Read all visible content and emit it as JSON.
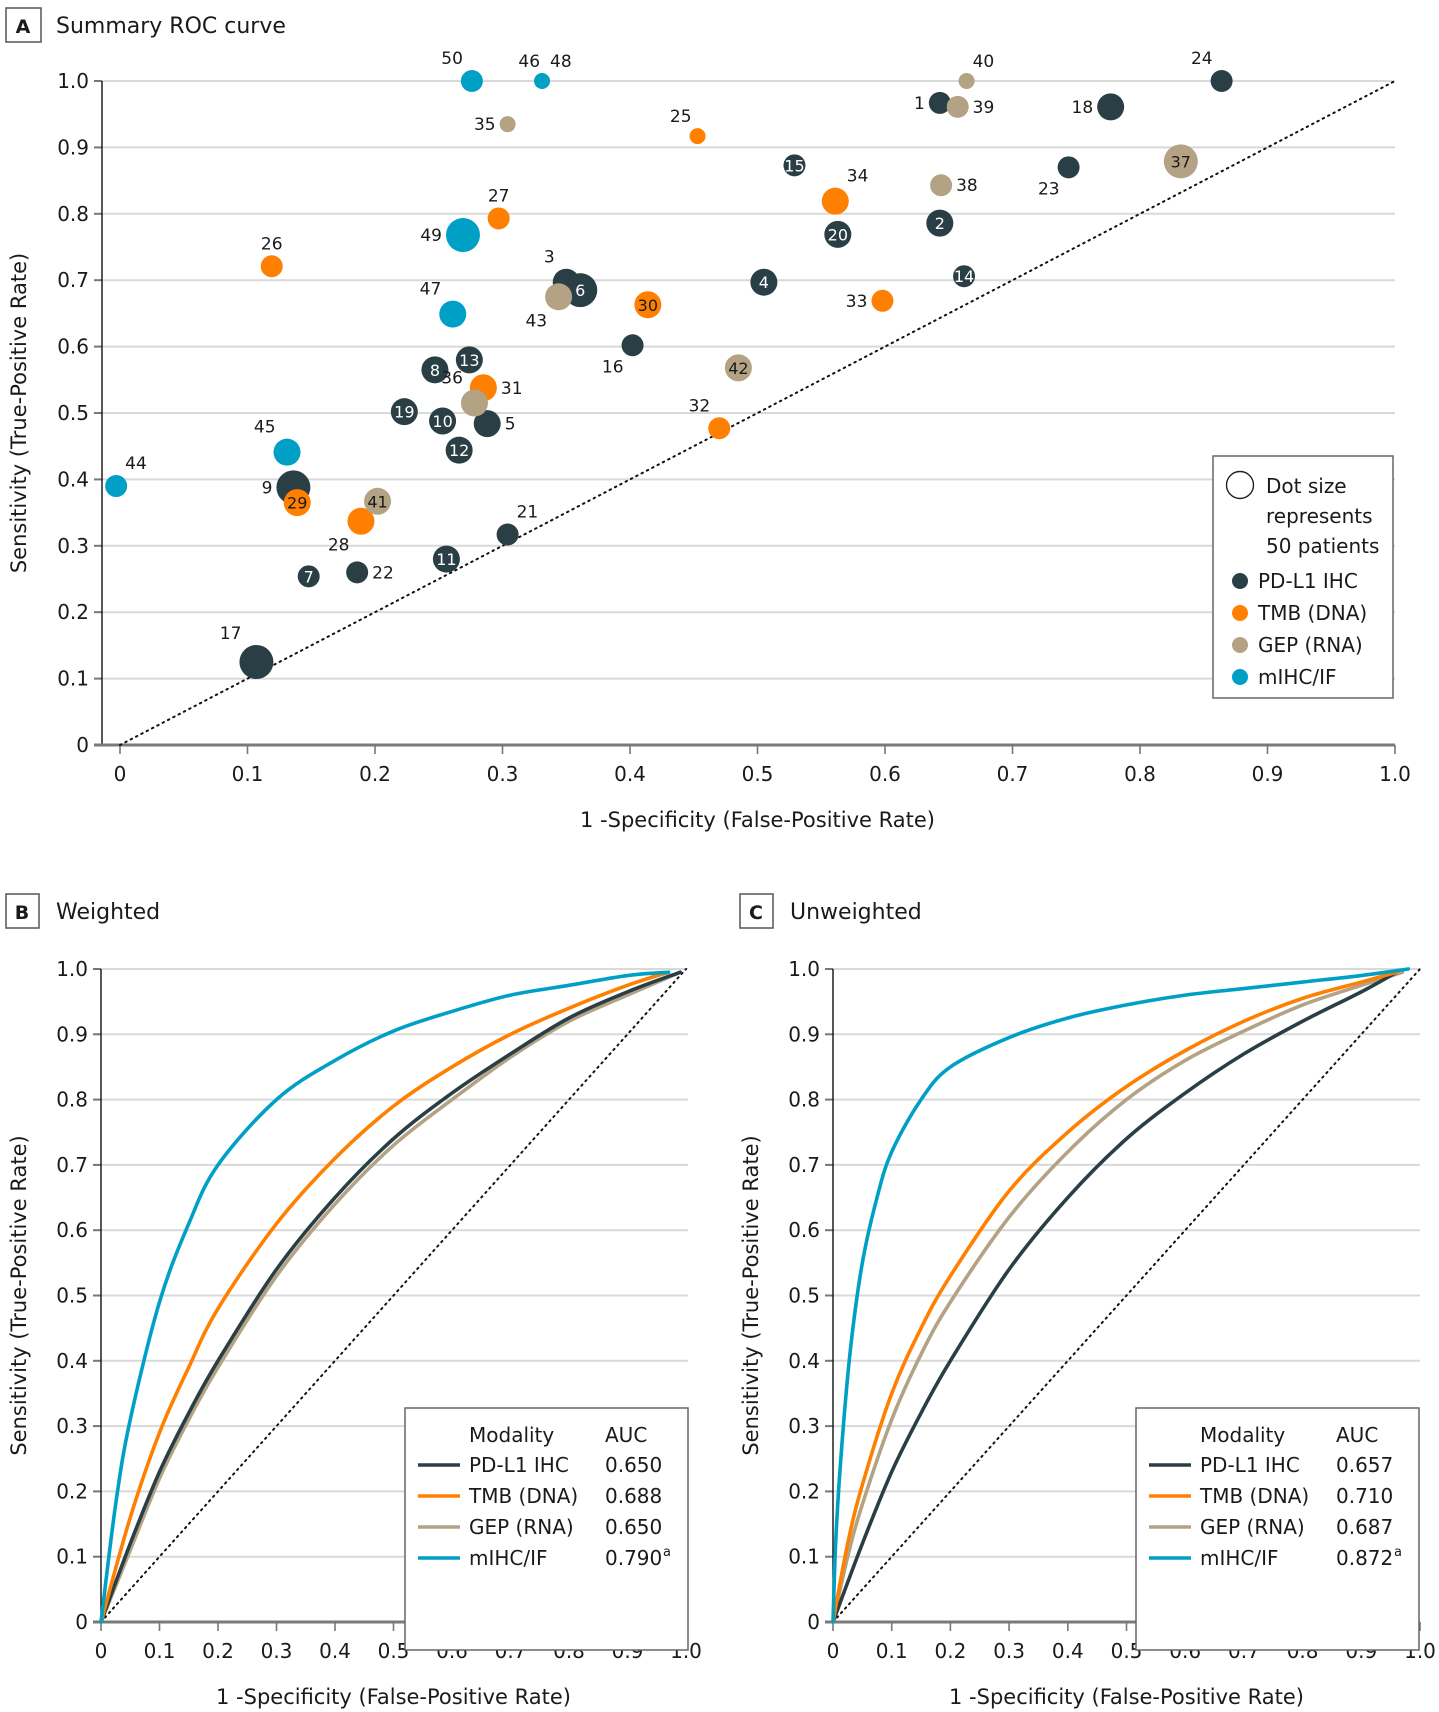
{
  "colors": {
    "PD-L1 IHC": "#2a3f45",
    "TMB (DNA)": "#ff8000",
    "GEP (RNA)": "#b3a283",
    "mIHC/IF": "#00a0c6",
    "grid": "#d9d9d9",
    "diagonal": "#111111"
  },
  "chart_data": [
    {
      "panel": "A",
      "type": "scatter",
      "title": "Summary ROC curve",
      "xlabel": "1 -Specificity (False-Positive Rate)",
      "ylabel": "Sensitivity (True-Positive Rate)",
      "xlim": [
        0,
        1.0
      ],
      "ylim": [
        0,
        1.0
      ],
      "xticks": [
        "0",
        "0.1",
        "0.2",
        "0.3",
        "0.4",
        "0.5",
        "0.6",
        "0.7",
        "0.8",
        "0.9",
        "1.0"
      ],
      "yticks": [
        "0",
        "0.1",
        "0.2",
        "0.3",
        "0.4",
        "0.5",
        "0.6",
        "0.7",
        "0.8",
        "0.9",
        "1.0"
      ],
      "grid": "horizontal",
      "reference_line": "diagonal (chance)",
      "legend": {
        "placement": "bottom-right",
        "size_note": [
          "Dot size",
          "represents",
          "50 patients"
        ],
        "entries": [
          "PD-L1 IHC",
          "TMB (DNA)",
          "GEP (RNA)",
          "mIHC/IF"
        ]
      },
      "points": [
        {
          "id": "1",
          "modality": "PD-L1 IHC",
          "x": 0.643,
          "y": 0.967,
          "size": "m",
          "label_pos": "left"
        },
        {
          "id": "2",
          "modality": "PD-L1 IHC",
          "x": 0.643,
          "y": 0.786,
          "size": "l",
          "label_pos": "in"
        },
        {
          "id": "3",
          "modality": "PD-L1 IHC",
          "x": 0.35,
          "y": 0.697,
          "size": "l",
          "label_pos": "top-left"
        },
        {
          "id": "4",
          "modality": "PD-L1 IHC",
          "x": 0.505,
          "y": 0.697,
          "size": "l",
          "label_pos": "in"
        },
        {
          "id": "5",
          "modality": "PD-L1 IHC",
          "x": 0.288,
          "y": 0.484,
          "size": "l",
          "label_pos": "right"
        },
        {
          "id": "6",
          "modality": "PD-L1 IHC",
          "x": 0.361,
          "y": 0.685,
          "size": "xl",
          "label_pos": "in"
        },
        {
          "id": "7",
          "modality": "PD-L1 IHC",
          "x": 0.148,
          "y": 0.254,
          "size": "m",
          "label_pos": "in"
        },
        {
          "id": "8",
          "modality": "PD-L1 IHC",
          "x": 0.247,
          "y": 0.565,
          "size": "l",
          "label_pos": "in"
        },
        {
          "id": "9",
          "modality": "PD-L1 IHC",
          "x": 0.136,
          "y": 0.388,
          "size": "xl",
          "label_pos": "left"
        },
        {
          "id": "10",
          "modality": "PD-L1 IHC",
          "x": 0.253,
          "y": 0.488,
          "size": "l",
          "label_pos": "in"
        },
        {
          "id": "11",
          "modality": "PD-L1 IHC",
          "x": 0.256,
          "y": 0.28,
          "size": "l",
          "label_pos": "in"
        },
        {
          "id": "12",
          "modality": "PD-L1 IHC",
          "x": 0.266,
          "y": 0.444,
          "size": "l",
          "label_pos": "in"
        },
        {
          "id": "13",
          "modality": "PD-L1 IHC",
          "x": 0.274,
          "y": 0.58,
          "size": "l",
          "label_pos": "in"
        },
        {
          "id": "14",
          "modality": "PD-L1 IHC",
          "x": 0.662,
          "y": 0.706,
          "size": "m",
          "label_pos": "in"
        },
        {
          "id": "15",
          "modality": "PD-L1 IHC",
          "x": 0.529,
          "y": 0.873,
          "size": "m",
          "label_pos": "in"
        },
        {
          "id": "16",
          "modality": "PD-L1 IHC",
          "x": 0.402,
          "y": 0.602,
          "size": "m",
          "label_pos": "bottom-left"
        },
        {
          "id": "17",
          "modality": "PD-L1 IHC",
          "x": 0.107,
          "y": 0.125,
          "size": "xl",
          "label_pos": "top-left"
        },
        {
          "id": "18",
          "modality": "PD-L1 IHC",
          "x": 0.777,
          "y": 0.961,
          "size": "l",
          "label_pos": "left"
        },
        {
          "id": "19",
          "modality": "PD-L1 IHC",
          "x": 0.223,
          "y": 0.502,
          "size": "l",
          "label_pos": "in"
        },
        {
          "id": "20",
          "modality": "PD-L1 IHC",
          "x": 0.563,
          "y": 0.769,
          "size": "l",
          "label_pos": "in"
        },
        {
          "id": "21",
          "modality": "PD-L1 IHC",
          "x": 0.304,
          "y": 0.317,
          "size": "m",
          "label_pos": "top-right"
        },
        {
          "id": "22",
          "modality": "PD-L1 IHC",
          "x": 0.186,
          "y": 0.26,
          "size": "m",
          "label_pos": "right"
        },
        {
          "id": "23",
          "modality": "PD-L1 IHC",
          "x": 0.744,
          "y": 0.87,
          "size": "m",
          "label_pos": "bottom-left"
        },
        {
          "id": "24",
          "modality": "PD-L1 IHC",
          "x": 0.864,
          "y": 1.0,
          "size": "m",
          "label_pos": "top-left"
        },
        {
          "id": "25",
          "modality": "TMB (DNA)",
          "x": 0.453,
          "y": 0.917,
          "size": "s",
          "label_pos": "top-left"
        },
        {
          "id": "26",
          "modality": "TMB (DNA)",
          "x": 0.119,
          "y": 0.721,
          "size": "m",
          "label_pos": "top"
        },
        {
          "id": "27",
          "modality": "TMB (DNA)",
          "x": 0.297,
          "y": 0.793,
          "size": "m",
          "label_pos": "top"
        },
        {
          "id": "28",
          "modality": "TMB (DNA)",
          "x": 0.189,
          "y": 0.337,
          "size": "l",
          "label_pos": "bottom-left"
        },
        {
          "id": "29",
          "modality": "TMB (DNA)",
          "x": 0.139,
          "y": 0.365,
          "size": "l",
          "label_pos": "in"
        },
        {
          "id": "30",
          "modality": "TMB (DNA)",
          "x": 0.414,
          "y": 0.663,
          "size": "l",
          "label_pos": "in"
        },
        {
          "id": "31",
          "modality": "TMB (DNA)",
          "x": 0.285,
          "y": 0.538,
          "size": "l",
          "label_pos": "right"
        },
        {
          "id": "32",
          "modality": "TMB (DNA)",
          "x": 0.47,
          "y": 0.477,
          "size": "m",
          "label_pos": "top-left"
        },
        {
          "id": "33",
          "modality": "TMB (DNA)",
          "x": 0.598,
          "y": 0.669,
          "size": "m",
          "label_pos": "left"
        },
        {
          "id": "34",
          "modality": "TMB (DNA)",
          "x": 0.561,
          "y": 0.819,
          "size": "l",
          "label_pos": "top-right"
        },
        {
          "id": "35",
          "modality": "GEP (RNA)",
          "x": 0.304,
          "y": 0.935,
          "size": "s",
          "label_pos": "left"
        },
        {
          "id": "36",
          "modality": "GEP (RNA)",
          "x": 0.278,
          "y": 0.515,
          "size": "l",
          "label_pos": "top-left"
        },
        {
          "id": "37",
          "modality": "GEP (RNA)",
          "x": 0.832,
          "y": 0.879,
          "size": "xl",
          "label_pos": "in"
        },
        {
          "id": "38",
          "modality": "GEP (RNA)",
          "x": 0.644,
          "y": 0.843,
          "size": "m",
          "label_pos": "right"
        },
        {
          "id": "39",
          "modality": "GEP (RNA)",
          "x": 0.657,
          "y": 0.961,
          "size": "m",
          "label_pos": "right"
        },
        {
          "id": "40",
          "modality": "GEP (RNA)",
          "x": 0.664,
          "y": 1.0,
          "size": "s",
          "label_pos": "top-right"
        },
        {
          "id": "41",
          "modality": "GEP (RNA)",
          "x": 0.202,
          "y": 0.367,
          "size": "l",
          "label_pos": "in"
        },
        {
          "id": "42",
          "modality": "GEP (RNA)",
          "x": 0.485,
          "y": 0.568,
          "size": "l",
          "label_pos": "in"
        },
        {
          "id": "43",
          "modality": "GEP (RNA)",
          "x": 0.344,
          "y": 0.675,
          "size": "l",
          "label_pos": "bottom-left"
        },
        {
          "id": "44",
          "modality": "mIHC/IF",
          "x": -0.003,
          "y": 0.39,
          "size": "m",
          "label_pos": "top-right"
        },
        {
          "id": "45",
          "modality": "mIHC/IF",
          "x": 0.131,
          "y": 0.441,
          "size": "l",
          "label_pos": "top-left"
        },
        {
          "id": "46",
          "modality": "mIHC/IF",
          "x": 0.331,
          "y": 1.0,
          "size": "s",
          "label_pos": "top"
        },
        {
          "id": "48",
          "modality": "mIHC/IF",
          "x": 0.331,
          "y": 1.0,
          "size": "s",
          "label_pos": "top-right"
        },
        {
          "id": "47",
          "modality": "mIHC/IF",
          "x": 0.261,
          "y": 0.649,
          "size": "l",
          "label_pos": "top-left"
        },
        {
          "id": "49",
          "modality": "mIHC/IF",
          "x": 0.269,
          "y": 0.768,
          "size": "xl",
          "label_pos": "left"
        },
        {
          "id": "50",
          "modality": "mIHC/IF",
          "x": 0.276,
          "y": 1.0,
          "size": "m",
          "label_pos": "top-left"
        }
      ]
    },
    {
      "panel": "B",
      "type": "line",
      "title": "Weighted",
      "xlabel": "1 -Specificity (False-Positive Rate)",
      "ylabel": "Sensitivity (True-Positive Rate)",
      "xlim": [
        0,
        1.0
      ],
      "ylim": [
        0,
        1.0
      ],
      "xticks": [
        "0",
        "0.1",
        "0.2",
        "0.3",
        "0.4",
        "0.5",
        "0.6",
        "0.7",
        "0.8",
        "0.9",
        "1.0"
      ],
      "yticks": [
        "0",
        "0.1",
        "0.2",
        "0.3",
        "0.4",
        "0.5",
        "0.6",
        "0.7",
        "0.8",
        "0.9",
        "1.0"
      ],
      "grid": "horizontal",
      "reference_line": "diagonal (chance)",
      "legend": {
        "placement": "bottom-right",
        "header": [
          "Modality",
          "AUC"
        ]
      },
      "series": [
        {
          "name": "PD-L1 IHC",
          "auc": "0.650",
          "sup": "",
          "x": [
            0,
            0.05,
            0.1,
            0.15,
            0.2,
            0.3,
            0.4,
            0.5,
            0.6,
            0.7,
            0.8,
            0.9,
            0.99
          ],
          "y": [
            0,
            0.12,
            0.23,
            0.32,
            0.4,
            0.54,
            0.65,
            0.74,
            0.81,
            0.87,
            0.925,
            0.965,
            0.995
          ]
        },
        {
          "name": "TMB (DNA)",
          "auc": "0.688",
          "sup": "",
          "x": [
            0,
            0.05,
            0.1,
            0.15,
            0.2,
            0.3,
            0.4,
            0.5,
            0.6,
            0.7,
            0.8,
            0.9,
            0.97
          ],
          "y": [
            0,
            0.16,
            0.29,
            0.39,
            0.48,
            0.61,
            0.71,
            0.79,
            0.85,
            0.9,
            0.94,
            0.975,
            0.995
          ]
        },
        {
          "name": "GEP (RNA)",
          "auc": "0.650",
          "sup": "",
          "x": [
            0,
            0.05,
            0.1,
            0.15,
            0.2,
            0.3,
            0.4,
            0.5,
            0.6,
            0.7,
            0.8,
            0.9,
            0.99
          ],
          "y": [
            0,
            0.11,
            0.22,
            0.31,
            0.39,
            0.53,
            0.64,
            0.73,
            0.8,
            0.865,
            0.92,
            0.96,
            0.995
          ]
        },
        {
          "name": "mIHC/IF",
          "auc": "0.790",
          "sup": "a",
          "x": [
            0,
            0.025,
            0.05,
            0.1,
            0.15,
            0.2,
            0.3,
            0.4,
            0.5,
            0.6,
            0.7,
            0.8,
            0.9,
            0.97
          ],
          "y": [
            0,
            0.18,
            0.31,
            0.49,
            0.61,
            0.7,
            0.8,
            0.86,
            0.905,
            0.935,
            0.96,
            0.975,
            0.99,
            0.995
          ]
        }
      ]
    },
    {
      "panel": "C",
      "type": "line",
      "title": "Unweighted",
      "xlabel": "1 -Specificity (False-Positive Rate)",
      "ylabel": "Sensitivity (True-Positive Rate)",
      "xlim": [
        0,
        1.0
      ],
      "ylim": [
        0,
        1.0
      ],
      "xticks": [
        "0",
        "0.1",
        "0.2",
        "0.3",
        "0.4",
        "0.5",
        "0.6",
        "0.7",
        "0.8",
        "0.9",
        "1.0"
      ],
      "yticks": [
        "0",
        "0.1",
        "0.2",
        "0.3",
        "0.4",
        "0.5",
        "0.6",
        "0.7",
        "0.8",
        "0.9",
        "1.0"
      ],
      "grid": "horizontal",
      "reference_line": "diagonal (chance)",
      "legend": {
        "placement": "bottom-right",
        "header": [
          "Modality",
          "AUC"
        ]
      },
      "series": [
        {
          "name": "PD-L1 IHC",
          "auc": "0.657",
          "sup": "",
          "x": [
            0,
            0.05,
            0.1,
            0.15,
            0.2,
            0.3,
            0.4,
            0.5,
            0.6,
            0.7,
            0.8,
            0.9,
            0.96
          ],
          "y": [
            0,
            0.12,
            0.23,
            0.32,
            0.4,
            0.54,
            0.65,
            0.74,
            0.81,
            0.87,
            0.92,
            0.965,
            0.995
          ]
        },
        {
          "name": "TMB (DNA)",
          "auc": "0.710",
          "sup": "",
          "x": [
            0,
            0.025,
            0.05,
            0.1,
            0.15,
            0.2,
            0.3,
            0.4,
            0.5,
            0.6,
            0.7,
            0.8,
            0.9,
            0.96
          ],
          "y": [
            0,
            0.12,
            0.21,
            0.35,
            0.45,
            0.53,
            0.66,
            0.75,
            0.82,
            0.875,
            0.92,
            0.955,
            0.98,
            0.995
          ]
        },
        {
          "name": "GEP (RNA)",
          "auc": "0.687",
          "sup": "",
          "x": [
            0,
            0.025,
            0.05,
            0.1,
            0.15,
            0.2,
            0.3,
            0.4,
            0.5,
            0.6,
            0.7,
            0.8,
            0.9,
            0.97
          ],
          "y": [
            0,
            0.1,
            0.18,
            0.31,
            0.41,
            0.49,
            0.62,
            0.72,
            0.8,
            0.86,
            0.905,
            0.945,
            0.975,
            0.995
          ]
        },
        {
          "name": "mIHC/IF",
          "auc": "0.872",
          "sup": "a",
          "x": [
            0,
            0.005,
            0.015,
            0.03,
            0.05,
            0.075,
            0.1,
            0.15,
            0.2,
            0.3,
            0.4,
            0.5,
            0.6,
            0.7,
            0.8,
            0.9,
            0.98
          ],
          "y": [
            0,
            0.13,
            0.27,
            0.42,
            0.55,
            0.65,
            0.72,
            0.8,
            0.85,
            0.895,
            0.925,
            0.945,
            0.96,
            0.97,
            0.98,
            0.99,
            1.0
          ]
        }
      ]
    }
  ]
}
